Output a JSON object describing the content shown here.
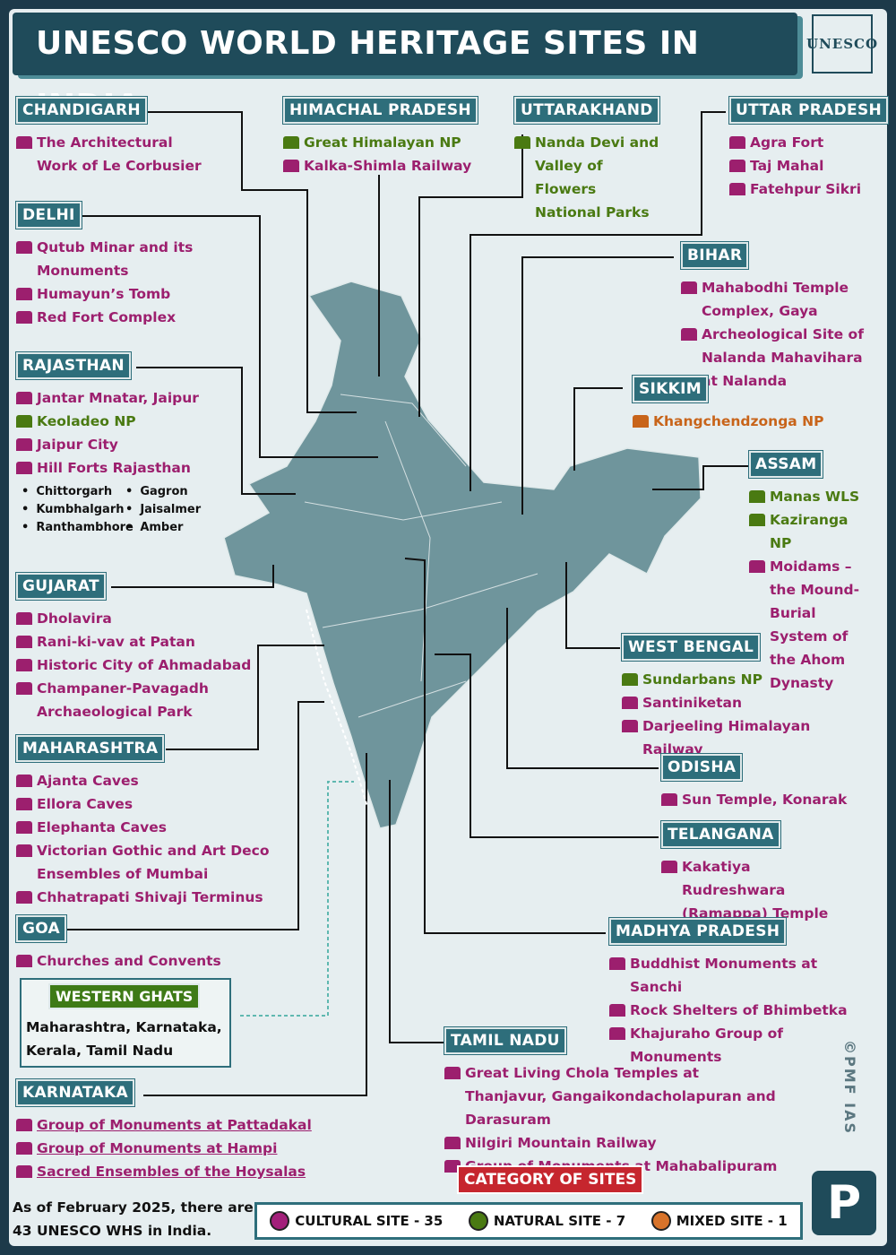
{
  "header": {
    "title": "UNESCO WORLD HERITAGE SITES IN INDIA",
    "logo": "UNESCO"
  },
  "states": [
    {
      "name": "CHANDIGARH",
      "sites": [
        {
          "text": "The Architectural Work of Le Corbusier",
          "color": "#9c1f6e"
        }
      ]
    },
    {
      "name": "HIMACHAL PRADESH",
      "sites": [
        {
          "text": "Great Himalayan NP",
          "color": "#4a7a12"
        },
        {
          "text": "Kalka-Shimla Railway",
          "color": "#9c1f6e"
        }
      ]
    },
    {
      "name": "UTTARAKHAND",
      "sites": [
        {
          "text": "Nanda Devi and Valley of Flowers National Parks",
          "color": "#4a7a12"
        }
      ]
    },
    {
      "name": "UTTAR PRADESH",
      "sites": [
        {
          "text": "Agra Fort",
          "color": "#9c1f6e"
        },
        {
          "text": "Taj Mahal",
          "color": "#9c1f6e"
        },
        {
          "text": "Fatehpur Sikri",
          "color": "#9c1f6e"
        }
      ]
    },
    {
      "name": "DELHI",
      "sites": [
        {
          "text": "Qutub Minar and its Monuments",
          "color": "#9c1f6e"
        },
        {
          "text": "Humayun’s Tomb",
          "color": "#9c1f6e"
        },
        {
          "text": "Red Fort Complex",
          "color": "#9c1f6e"
        }
      ]
    },
    {
      "name": "BIHAR",
      "sites": [
        {
          "text": "Mahabodhi Temple Complex, Gaya",
          "color": "#9c1f6e"
        },
        {
          "text": "Archeological Site of Nalanda Mahavihara at Nalanda",
          "color": "#9c1f6e"
        }
      ]
    },
    {
      "name": "RAJASTHAN",
      "sites": [
        {
          "text": "Jantar Mnatar, Jaipur",
          "color": "#9c1f6e"
        },
        {
          "text": "Keoladeo NP",
          "color": "#4a7a12"
        },
        {
          "text": "Jaipur City",
          "color": "#9c1f6e"
        },
        {
          "text": "Hill Forts Rajasthan",
          "color": "#9c1f6e"
        }
      ],
      "bullets": [
        "Chittorgarh",
        "Gagron",
        "Kumbhalgarh",
        "Jaisalmer",
        "Ranthambhore",
        "Amber"
      ]
    },
    {
      "name": "SIKKIM",
      "sites": [
        {
          "text": "Khangchendzonga NP",
          "color": "#c8641a"
        }
      ]
    },
    {
      "name": "ASSAM",
      "sites": [
        {
          "text": "Manas WLS",
          "color": "#4a7a12"
        },
        {
          "text": "Kaziranga NP",
          "color": "#4a7a12"
        },
        {
          "text": "Moidams – the Mound-Burial System of the Ahom Dynasty",
          "color": "#9c1f6e"
        }
      ]
    },
    {
      "name": "GUJARAT",
      "sites": [
        {
          "text": "Dholavira",
          "color": "#9c1f6e"
        },
        {
          "text": "Rani-ki-vav at Patan",
          "color": "#9c1f6e"
        },
        {
          "text": "Historic City of Ahmadabad",
          "color": "#9c1f6e"
        },
        {
          "text": "Champaner-Pavagadh Archaeological Park",
          "color": "#9c1f6e"
        }
      ]
    },
    {
      "name": "WEST BENGAL",
      "sites": [
        {
          "text": "Sundarbans NP",
          "color": "#4a7a12"
        },
        {
          "text": "Santiniketan",
          "color": "#9c1f6e"
        },
        {
          "text": "Darjeeling Himalayan Railway",
          "color": "#9c1f6e"
        }
      ]
    },
    {
      "name": "MAHARASHTRA",
      "sites": [
        {
          "text": "Ajanta Caves",
          "color": "#9c1f6e"
        },
        {
          "text": "Ellora Caves",
          "color": "#9c1f6e"
        },
        {
          "text": "Elephanta Caves",
          "color": "#9c1f6e"
        },
        {
          "text": "Victorian Gothic and Art Deco Ensembles of Mumbai",
          "color": "#9c1f6e"
        },
        {
          "text": "Chhatrapati Shivaji Terminus",
          "color": "#9c1f6e"
        }
      ]
    },
    {
      "name": "ODISHA",
      "sites": [
        {
          "text": "Sun Temple, Konarak",
          "color": "#9c1f6e"
        }
      ]
    },
    {
      "name": "TELANGANA",
      "sites": [
        {
          "text": "Kakatiya Rudreshwara (Ramappa) Temple",
          "color": "#9c1f6e"
        }
      ]
    },
    {
      "name": "GOA",
      "sites": [
        {
          "text": "Churches and Convents",
          "color": "#9c1f6e"
        }
      ]
    },
    {
      "name": "MADHYA PRADESH",
      "sites": [
        {
          "text": "Buddhist Monuments at Sanchi",
          "color": "#9c1f6e"
        },
        {
          "text": "Rock Shelters of Bhimbetka",
          "color": "#9c1f6e"
        },
        {
          "text": "Khajuraho Group of Monuments",
          "color": "#9c1f6e"
        }
      ]
    },
    {
      "name": "TAMIL NADU",
      "sites": [
        {
          "text": "Great Living Chola Temples at Thanjavur, Gangaikondacholapuran and Darasuram",
          "color": "#9c1f6e"
        },
        {
          "text": "Nilgiri Mountain Railway",
          "color": "#9c1f6e"
        },
        {
          "text": "Group of Monuments at Mahabalipuram",
          "color": "#9c1f6e"
        }
      ]
    },
    {
      "name": "KARNATAKA",
      "sites": [
        {
          "text": "Group of Monuments at Pattadakal",
          "color": "#9c1f6e"
        },
        {
          "text": "Group of Monuments at Hampi",
          "color": "#9c1f6e"
        },
        {
          "text": "Sacred Ensembles of the Hoysalas",
          "color": "#9c1f6e"
        }
      ],
      "underline": true
    }
  ],
  "western_ghats": {
    "title": "WESTERN GHATS",
    "text": "Maharashtra, Karnataka, Kerala, Tamil Nadu"
  },
  "footer": {
    "note": "As of February 2025, there are 43 UNESCO WHS in India.",
    "category_title": "CATEGORY OF SITES",
    "legend": [
      {
        "label": "CULTURAL SITE - 35",
        "color": "#a3207a"
      },
      {
        "label": "NATURAL SITE - 7",
        "color": "#4a7a12"
      },
      {
        "label": "MIXED SITE - 1",
        "color": "#d8732a"
      }
    ],
    "credit": "©PMF IAS",
    "brand": "P"
  }
}
